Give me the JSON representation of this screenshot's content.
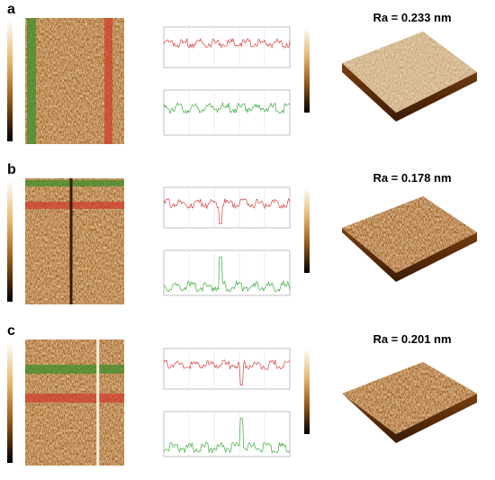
{
  "panels": [
    {
      "label": "a",
      "ra": "Ra = 0.233 nm"
    },
    {
      "label": "b",
      "ra": "Ra = 0.178 nm"
    },
    {
      "label": "c",
      "ra": "Ra = 0.201 nm"
    }
  ]
}
